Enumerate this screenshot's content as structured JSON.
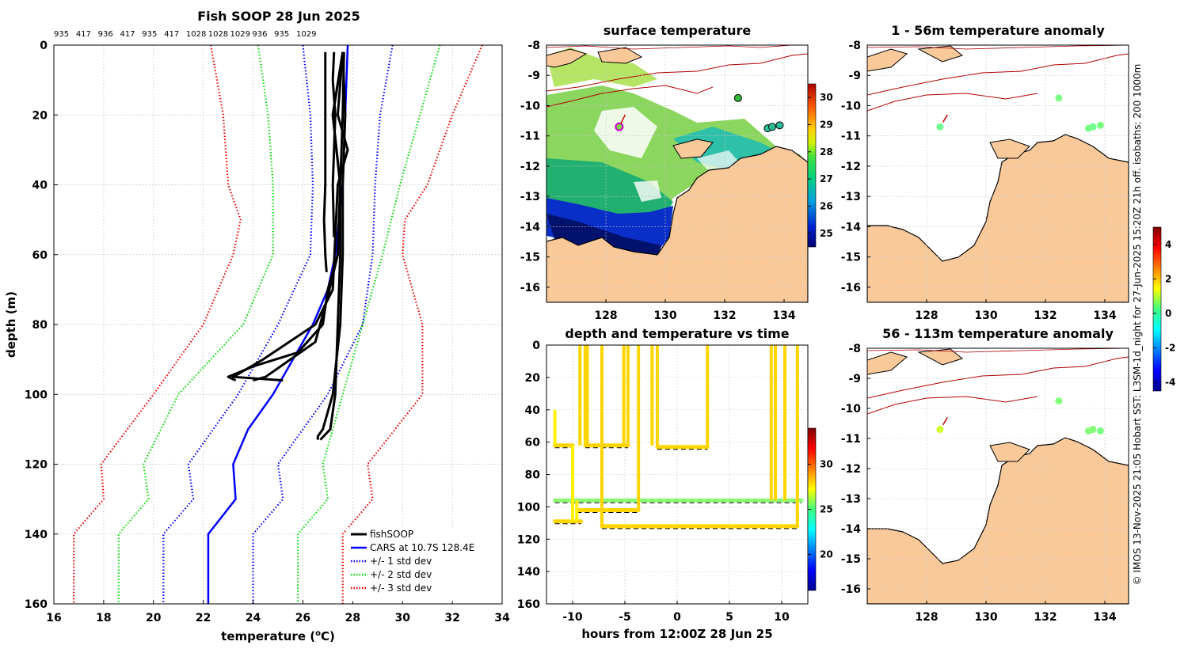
{
  "chart_data": [
    {
      "type": "line",
      "title": "Fish SOOP 28 Jun 2025",
      "top_labels": [
        "935",
        "417",
        "936",
        "417",
        "935",
        "417",
        "1028",
        "1028",
        "1029",
        "936",
        "935",
        "1029"
      ],
      "xlabel_main": "temperature (",
      "xlabel_sup": "o",
      "xlabel_end": "C)",
      "ylabel": "depth (m)",
      "xlim": [
        16,
        34
      ],
      "ylim": [
        0,
        160
      ],
      "xticks": [
        "16",
        "18",
        "20",
        "22",
        "24",
        "26",
        "28",
        "30",
        "32",
        "34"
      ],
      "yticks": [
        "0",
        "20",
        "40",
        "60",
        "80",
        "100",
        "120",
        "140",
        "160"
      ],
      "colors": {
        "fish": "#000000",
        "cars": "#0000ff",
        "sd1": "#0000ff",
        "sd2": "#00dd00",
        "sd3": "#ee0000"
      },
      "legend": [
        "fishSOOP",
        "CARS at 10.7S 128.4E",
        "+/- 1 std dev",
        "+/- 2 std dev",
        "+/- 3 std dev"
      ],
      "series": [
        {
          "name": "CARS mean",
          "depth": [
            0,
            40,
            60,
            70,
            80,
            90,
            100,
            110,
            120,
            130,
            140,
            160
          ],
          "temp": [
            27.8,
            27.6,
            27.3,
            27.0,
            26.4,
            25.6,
            24.8,
            23.8,
            23.2,
            23.3,
            22.2,
            22.2
          ]
        },
        {
          "name": "-1 std",
          "depth": [
            0,
            20,
            40,
            60,
            80,
            100,
            120,
            130,
            140,
            160
          ],
          "temp": [
            26.0,
            26.3,
            26.4,
            26.3,
            25.0,
            23.4,
            21.4,
            21.6,
            20.4,
            20.4
          ]
        },
        {
          "name": "+1 std",
          "depth": [
            0,
            20,
            40,
            60,
            80,
            100,
            120,
            130,
            140,
            160
          ],
          "temp": [
            29.6,
            29.1,
            28.9,
            28.8,
            28.4,
            27.0,
            25.0,
            25.2,
            24.0,
            24.0
          ]
        },
        {
          "name": "-2 std",
          "depth": [
            0,
            20,
            40,
            60,
            80,
            100,
            120,
            130,
            140,
            160
          ],
          "temp": [
            24.2,
            24.6,
            24.8,
            24.8,
            23.6,
            21.0,
            19.6,
            19.8,
            18.6,
            18.6
          ]
        },
        {
          "name": "+2 std",
          "depth": [
            0,
            20,
            40,
            60,
            80,
            100,
            120,
            130,
            140,
            160
          ],
          "temp": [
            31.5,
            30.7,
            29.9,
            29.2,
            28.4,
            27.6,
            26.8,
            27.0,
            25.8,
            25.8
          ]
        },
        {
          "name": "-3 std",
          "depth": [
            0,
            20,
            40,
            50,
            60,
            80,
            100,
            120,
            130,
            140,
            160
          ],
          "temp": [
            22.3,
            22.8,
            23.0,
            23.5,
            23.2,
            22.0,
            20.0,
            17.9,
            18.0,
            16.8,
            16.8
          ]
        },
        {
          "name": "+3 std",
          "depth": [
            0,
            20,
            40,
            50,
            60,
            80,
            100,
            120,
            130,
            140,
            160
          ],
          "temp": [
            33.2,
            32.0,
            31.0,
            30.1,
            30.0,
            30.8,
            30.8,
            28.6,
            28.8,
            27.6,
            27.6
          ]
        }
      ],
      "fish_profiles": [
        {
          "depth": [
            2,
            20,
            40,
            50,
            60,
            65
          ],
          "temp": [
            26.9,
            26.9,
            26.9,
            26.85,
            26.9,
            26.95
          ]
        },
        {
          "depth": [
            2,
            10,
            20,
            40,
            55
          ],
          "temp": [
            27.25,
            27.2,
            27.3,
            27.2,
            27.25
          ]
        },
        {
          "depth": [
            2,
            20,
            30,
            40,
            70,
            80,
            90,
            95,
            96
          ],
          "temp": [
            27.6,
            27.4,
            27.8,
            27.4,
            27.2,
            26.5,
            24.4,
            23.2,
            25.2
          ]
        },
        {
          "depth": [
            2,
            20,
            40,
            60,
            70,
            80,
            88,
            92,
            95,
            96
          ],
          "temp": [
            27.6,
            27.2,
            27.5,
            27.4,
            27.0,
            26.8,
            25.8,
            24.0,
            23.0,
            23.3
          ]
        },
        {
          "depth": [
            2,
            20,
            40,
            60,
            72,
            85,
            95,
            96
          ],
          "temp": [
            27.6,
            27.2,
            27.5,
            27.4,
            27.0,
            26.5,
            24.5,
            24.0
          ]
        },
        {
          "depth": [
            2,
            20,
            40,
            60,
            80,
            100,
            105,
            110,
            112,
            113
          ],
          "temp": [
            27.6,
            27.7,
            27.6,
            27.6,
            27.5,
            27.2,
            27.0,
            26.8,
            26.6,
            26.6
          ]
        },
        {
          "depth": [
            2,
            20,
            40,
            60,
            80,
            100,
            110,
            113
          ],
          "temp": [
            27.65,
            27.6,
            27.5,
            27.5,
            27.4,
            27.3,
            27.1,
            26.7
          ]
        }
      ]
    },
    {
      "type": "heatmap",
      "title": "surface temperature",
      "xlim": [
        126,
        134.8
      ],
      "ylim": [
        -16.5,
        -8
      ],
      "xticks": [
        "128",
        "130",
        "132",
        "134"
      ],
      "yticks": [
        "-8",
        "-9",
        "-10",
        "-11",
        "-12",
        "-13",
        "-14",
        "-15",
        "-16"
      ],
      "colorbar_ticks": [
        "30",
        "29",
        "28",
        "27",
        "26",
        "25"
      ],
      "clim": [
        24.5,
        30.5
      ]
    },
    {
      "type": "scatter",
      "title": "depth and temperature vs time",
      "xlabel": "hours from 12:00Z 28 Jun 25",
      "xlim": [
        -12.5,
        12.5
      ],
      "ylim": [
        0,
        160
      ],
      "xticks": [
        "-10",
        "-5",
        "0",
        "5",
        "10"
      ],
      "yticks": [
        "0",
        "20",
        "40",
        "60",
        "80",
        "100",
        "120",
        "140",
        "160"
      ],
      "colorbar_ticks": [
        "30",
        "25",
        "20"
      ],
      "clim": [
        16,
        34
      ],
      "tracks": [
        {
          "level": 62,
          "x0": -11.7,
          "x1": -10.0,
          "t": 28
        },
        {
          "level": 62,
          "x0": -8.8,
          "x1": -4.7,
          "t": 28
        },
        {
          "level": 63,
          "x0": -1.9,
          "x1": 2.9,
          "t": 28
        },
        {
          "level": 96,
          "x0": -11.7,
          "x1": 11.9,
          "t": 25.2
        },
        {
          "level": 102,
          "x0": -9.6,
          "x1": -3.7,
          "t": 28
        },
        {
          "level": 109,
          "x0": -11.7,
          "x1": -9.2,
          "t": 28
        },
        {
          "level": 112,
          "x0": -7.2,
          "x1": 11.5,
          "t": 28
        }
      ]
    },
    {
      "type": "scatter",
      "title": "1 - 56m temperature anomaly",
      "xticks": [
        "128",
        "130",
        "132",
        "134"
      ],
      "yticks": [
        "-8",
        "-9",
        "-10",
        "-11",
        "-12",
        "-13",
        "-14",
        "-15",
        "-16"
      ],
      "stations": [
        {
          "lon": 128.45,
          "lat": -10.7,
          "anom": 0.1
        },
        {
          "lon": 132.45,
          "lat": -9.75,
          "anom": 0.2
        },
        {
          "lon": 133.45,
          "lat": -10.75,
          "anom": 0.2
        },
        {
          "lon": 133.6,
          "lat": -10.7,
          "anom": 0.1
        },
        {
          "lon": 133.85,
          "lat": -10.65,
          "anom": 0.2
        }
      ]
    },
    {
      "type": "scatter",
      "title": "56 - 113m temperature anomaly",
      "xticks": [
        "128",
        "130",
        "132",
        "134"
      ],
      "yticks": [
        "-8",
        "-9",
        "-10",
        "-11",
        "-12",
        "-13",
        "-14",
        "-15",
        "-16"
      ],
      "stations": [
        {
          "lon": 128.45,
          "lat": -10.7,
          "anom": 1.0
        },
        {
          "lon": 132.45,
          "lat": -9.75,
          "anom": 0.3
        },
        {
          "lon": 133.45,
          "lat": -10.75,
          "anom": 0.3
        },
        {
          "lon": 133.6,
          "lat": -10.7,
          "anom": 0.3
        },
        {
          "lon": 133.85,
          "lat": -10.75,
          "anom": 0.2
        }
      ],
      "colorbar_ticks": [
        "4",
        "2",
        "0",
        "-2",
        "-4"
      ],
      "clim": [
        -4.5,
        5
      ]
    }
  ],
  "side_text": "© IMOS 13-Nov-2025 21:05 Hobart SST: L3SM-1d_night for 27-Jun-2025 15:20Z 21h off. isobaths: 200  1000m"
}
